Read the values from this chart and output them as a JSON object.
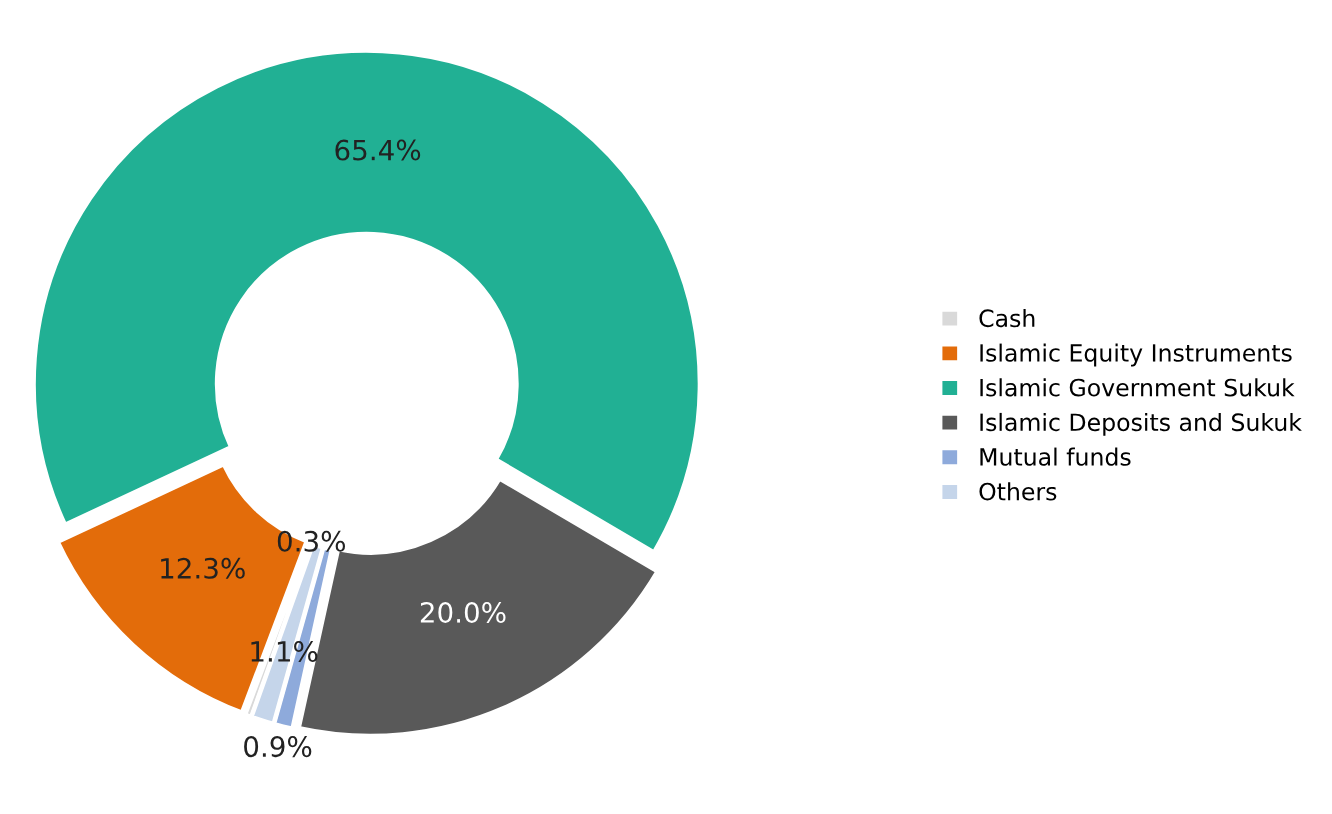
{
  "chart_data": {
    "type": "donut",
    "categories": [
      "Cash",
      "Islamic Equity Instruments",
      "Islamic Government Sukuk",
      "Islamic Deposits and Sukuk",
      "Mutual funds",
      "Others"
    ],
    "values": [
      0.3,
      12.3,
      65.4,
      20.0,
      0.9,
      1.1
    ],
    "colors": [
      "#d9d9d9",
      "#e36c0a",
      "#21b094",
      "#595959",
      "#8eaadb",
      "#c5d5ea"
    ],
    "value_labels": [
      "0.3%",
      "12.3%",
      "65.4%",
      "20.0%",
      "0.9%",
      "1.1%"
    ],
    "legend": "right"
  }
}
